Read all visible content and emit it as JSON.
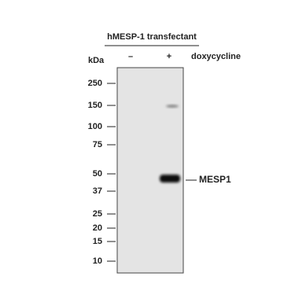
{
  "header": {
    "title": "hMESP-1 transfectant"
  },
  "lanes": [
    "–",
    "+"
  ],
  "treatment": "doxycycline",
  "axis_label": "kDa",
  "markers": [
    "250",
    "150",
    "100",
    "75",
    "50",
    "37",
    "25",
    "20",
    "15",
    "10"
  ],
  "band_label": "MESP1"
}
